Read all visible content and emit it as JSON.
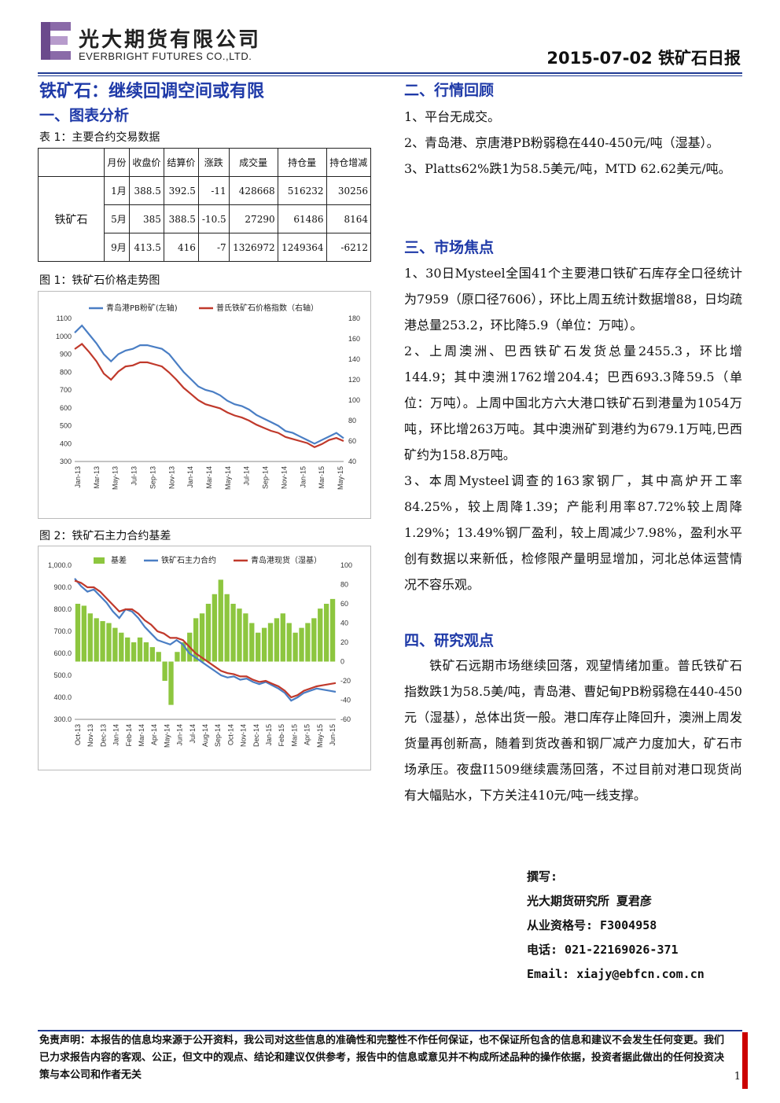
{
  "header": {
    "company_cn": "光大期货有限公司",
    "company_en": "EVERBRIGHT FUTURES CO.,LTD.",
    "report_title": "2015-07-02 铁矿石日报"
  },
  "main_title": "铁矿石：继续回调空间或有限",
  "section1": "一、图表分析",
  "table": {
    "caption": "表 1：主要合约交易数据",
    "headers": [
      "月份",
      "收盘价",
      "结算价",
      "涨跌",
      "成交量",
      "持仓量",
      "持仓增减"
    ],
    "product": "铁矿石",
    "rows": [
      [
        "1月",
        "388.5",
        "392.5",
        "-11",
        "428668",
        "516232",
        "30256"
      ],
      [
        "5月",
        "385",
        "388.5",
        "-10.5",
        "27290",
        "61486",
        "8164"
      ],
      [
        "9月",
        "413.5",
        "416",
        "-7",
        "1326972",
        "1249364",
        "-6212"
      ]
    ]
  },
  "fig1": {
    "caption": "图 1：铁矿石价格走势图",
    "chart_data": {
      "type": "line",
      "legend": [
        "青岛港PB粉矿(左轴)",
        "普氏铁矿石价格指数（右轴）"
      ],
      "left_ticks": [
        "1100",
        "1000",
        "900",
        "800",
        "700",
        "600",
        "500",
        "400",
        "300"
      ],
      "right_ticks": [
        "180",
        "160",
        "140",
        "120",
        "100",
        "80",
        "60",
        "40"
      ],
      "ylim_left": [
        300,
        1100
      ],
      "ylim_right": [
        40,
        180
      ],
      "x_ticks": [
        "Jan-13",
        "Mar-13",
        "May-13",
        "Jul-13",
        "Sep-13",
        "Nov-13",
        "Jan-14",
        "Mar-14",
        "May-14",
        "Jul-14",
        "Sep-14",
        "Nov-14",
        "Jan-15",
        "Mar-15",
        "May-15"
      ],
      "series": [
        {
          "name": "青岛港PB粉矿(左轴)",
          "color": "#4a7ec4",
          "axis": "left",
          "values": [
            1020,
            1060,
            1010,
            960,
            900,
            860,
            900,
            920,
            930,
            950,
            950,
            940,
            930,
            900,
            850,
            800,
            760,
            720,
            700,
            690,
            670,
            640,
            620,
            610,
            590,
            560,
            540,
            520,
            500,
            470,
            460,
            440,
            420,
            400,
            420,
            440,
            460,
            430
          ]
        },
        {
          "name": "普氏铁矿石价格指数（右轴）",
          "color": "#c0392b",
          "axis": "right",
          "values": [
            150,
            155,
            147,
            138,
            126,
            120,
            128,
            133,
            134,
            137,
            137,
            135,
            133,
            127,
            120,
            112,
            106,
            100,
            96,
            94,
            92,
            88,
            85,
            83,
            80,
            76,
            73,
            70,
            68,
            64,
            62,
            60,
            58,
            54,
            57,
            61,
            63,
            60
          ]
        }
      ]
    }
  },
  "fig2": {
    "caption": "图 2：铁矿石主力合约基差",
    "chart_data": {
      "type": "line",
      "legend": [
        "基差",
        "铁矿石主力合约",
        "青岛港现货（湿基）"
      ],
      "left_ticks": [
        "1,000.0",
        "900.0",
        "800.0",
        "700.0",
        "600.0",
        "500.0",
        "400.0",
        "300.0"
      ],
      "right_ticks": [
        "100",
        "80",
        "60",
        "40",
        "20",
        "0",
        "-20",
        "-40",
        "-60"
      ],
      "ylim_left": [
        300,
        1000
      ],
      "ylim_right": [
        -60,
        100
      ],
      "x_ticks": [
        "Oct-13",
        "Nov-13",
        "Dec-13",
        "Jan-14",
        "Feb-14",
        "Mar-14",
        "Apr-14",
        "May-14",
        "Jun-14",
        "Jul-14",
        "Aug-14",
        "Sep-14",
        "Oct-14",
        "Nov-14",
        "Dec-14",
        "Jan-15",
        "Feb-15",
        "Mar-15",
        "Apr-15",
        "May-15",
        "Jun-15"
      ],
      "series": [
        {
          "name": "基差",
          "color": "#8dc63f",
          "axis": "right",
          "values": [
            60,
            58,
            50,
            45,
            42,
            40,
            35,
            30,
            25,
            20,
            25,
            20,
            15,
            10,
            -20,
            -45,
            10,
            20,
            30,
            45,
            50,
            60,
            70,
            85,
            70,
            60,
            55,
            50,
            40,
            30,
            35,
            40,
            45,
            50,
            40,
            30,
            35,
            40,
            45,
            55,
            60,
            65
          ]
        },
        {
          "name": "铁矿石主力合约",
          "color": "#4a7ec4",
          "axis": "left",
          "values": [
            940,
            905,
            880,
            890,
            860,
            830,
            790,
            760,
            800,
            790,
            760,
            720,
            690,
            660,
            650,
            640,
            660,
            640,
            600,
            580,
            560,
            540,
            520,
            500,
            490,
            495,
            480,
            485,
            470,
            460,
            470,
            455,
            440,
            420,
            385,
            400,
            420,
            430,
            440,
            435,
            430,
            425
          ]
        },
        {
          "name": "青岛港现货（湿基）",
          "color": "#c0392b",
          "axis": "left",
          "values": [
            930,
            920,
            900,
            900,
            880,
            850,
            820,
            790,
            800,
            800,
            780,
            750,
            730,
            700,
            690,
            670,
            670,
            660,
            630,
            600,
            580,
            560,
            540,
            520,
            510,
            505,
            495,
            495,
            480,
            470,
            475,
            462,
            450,
            430,
            400,
            410,
            430,
            440,
            450,
            455,
            460,
            465
          ]
        }
      ]
    }
  },
  "section2": "二、行情回顾",
  "review": [
    "1、平台无成交。",
    "2、青岛港、京唐港PB粉弱稳在440-450元/吨（湿基）。",
    "3、Platts62%跌1为58.5美元/吨，MTD 62.62美元/吨。"
  ],
  "section3": "三、市场焦点",
  "focus": [
    "1、30日Mysteel全国41个主要港口铁矿石库存全口径统计为7959（原口径7606），环比上周五统计数据增88，日均疏港总量253.2，环比降5.9（单位：万吨）。",
    "2、上周澳洲、巴西铁矿石发货总量2455.3，环比增144.9；其中澳洲1762增204.4；巴西693.3降59.5（单位：万吨）。上周中国北方六大港口铁矿石到港量为1054万吨，环比增263万吨。其中澳洲矿到港约为679.1万吨,巴西矿约为158.8万吨。",
    "3、本周Mysteel调查的163家钢厂，其中高炉开工率84.25%，较上周降1.39；产能利用率87.72%较上周降1.29%；13.49%钢厂盈利，较上周减少7.98%，盈利水平创有数据以来新低，检修限产量明显增加，河北总体运营情况不容乐观。"
  ],
  "section4": "四、研究观点",
  "opinion": "铁矿石远期市场继续回落，观望情绪加重。普氏铁矿石指数跌1为58.5美/吨，青岛港、曹妃甸PB粉弱稳在440-450元（湿基），总体出货一般。港口库存止降回升，澳洲上周发货量再创新高，随着到货改善和钢厂减产力度加大，矿石市场承压。夜盘I1509继续震荡回落，不过目前对港口现货尚有大幅贴水，下方关注410元/吨一线支撑。",
  "author": {
    "label": "撰写:",
    "org": "光大期货研究所 夏君彦",
    "license": "从业资格号: F3004958",
    "phone": "电话: 021-22169026-371",
    "email": "Email: xiajy@ebfcn.com.cn"
  },
  "footer": {
    "disclaimer": "免责声明：本报告的信息均来源于公开资料，我公司对这些信息的准确性和完整性不作任何保证，也不保证所包含的信息和建议不会发生任何变更。我们已力求报告内容的客观、公正，但文中的观点、结论和建议仅供参考，报告中的信息或意见并不构成所述品种的操作依据，投资者据此做出的任何投资决策与本公司和作者无关",
    "page": "1"
  }
}
